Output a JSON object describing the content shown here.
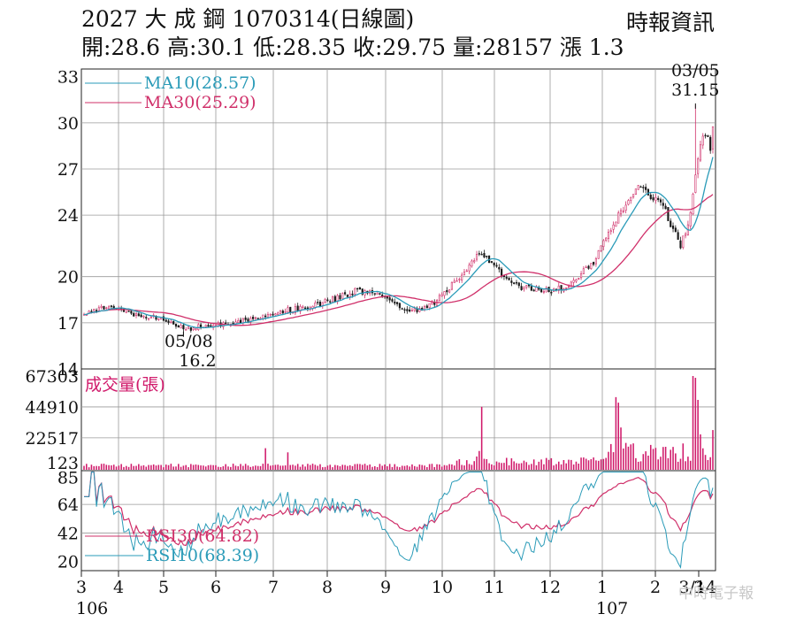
{
  "header": {
    "title": "2027 大 成 鋼 1070314(日線圖)",
    "ohlc": "開:28.6 高:30.1 低:28.35 收:29.75 量:28157 漲 1.3",
    "source": "時報資訊"
  },
  "chart_data": [
    {
      "type": "candlestick",
      "panel": "price",
      "yticks": [
        14,
        17,
        20,
        24,
        27,
        30,
        33
      ],
      "ylim": [
        14,
        33.5
      ],
      "legend": [
        {
          "label": "MA10(28.57)",
          "color": "#2a9bb8"
        },
        {
          "label": "MA30(25.29)",
          "color": "#d0306a"
        }
      ],
      "annotations": [
        {
          "date": "03/05",
          "value": "31.15",
          "x": 246,
          "y": 31.15
        },
        {
          "date": "05/08",
          "value": "16.2",
          "x": 40,
          "y": 16.2
        }
      ],
      "close_anchors": [
        [
          0,
          17.6
        ],
        [
          8,
          18
        ],
        [
          20,
          17.6
        ],
        [
          30,
          17.3
        ],
        [
          40,
          16.6
        ],
        [
          50,
          16.8
        ],
        [
          60,
          16.9
        ],
        [
          70,
          17.4
        ],
        [
          80,
          17.8
        ],
        [
          90,
          18
        ],
        [
          100,
          18.5
        ],
        [
          110,
          19.1
        ],
        [
          120,
          18.8
        ],
        [
          130,
          17.6
        ],
        [
          140,
          18.2
        ],
        [
          150,
          19.8
        ],
        [
          160,
          21.6
        ],
        [
          165,
          20.6
        ],
        [
          175,
          19.3
        ],
        [
          185,
          19.1
        ],
        [
          195,
          19.3
        ],
        [
          205,
          21
        ],
        [
          213,
          23.5
        ],
        [
          222,
          25.8
        ],
        [
          232,
          24.9
        ],
        [
          240,
          22
        ],
        [
          244,
          24
        ],
        [
          248,
          28.7
        ],
        [
          250,
          29.2
        ],
        [
          252,
          28.45
        ],
        [
          253,
          29.75
        ]
      ]
    },
    {
      "type": "bar",
      "panel": "volume",
      "title": "成交量(張)",
      "color": "#d01a6b",
      "yticks": [
        123,
        22517,
        44910,
        67303
      ],
      "ylim": [
        0,
        67303
      ],
      "spikes": [
        [
          73,
          15000
        ],
        [
          82,
          12000
        ],
        [
          158,
          9000
        ],
        [
          159,
          13000
        ],
        [
          160,
          45000
        ],
        [
          210,
          8000
        ],
        [
          214,
          52000
        ],
        [
          215,
          48000
        ],
        [
          216,
          30000
        ],
        [
          245,
          72000
        ],
        [
          246,
          66000
        ],
        [
          247,
          50000
        ],
        [
          248,
          25000
        ],
        [
          253,
          28157
        ]
      ]
    },
    {
      "type": "line",
      "panel": "rsi",
      "yticks": [
        20,
        42,
        64,
        85
      ],
      "ylim": [
        13,
        90
      ],
      "series": [
        {
          "name": "RSI30(64.82)",
          "color": "#d0306a"
        },
        {
          "name": "RSI10(68.39)",
          "color": "#2a9bb8"
        }
      ]
    }
  ],
  "x_axis": {
    "months": [
      "3",
      "4",
      "5",
      "6",
      "7",
      "8",
      "9",
      "10",
      "11",
      "12",
      "1",
      "2",
      "3"
    ],
    "years": [
      "106",
      "107"
    ],
    "end_label": "3/14"
  },
  "watermark": "中時電子報"
}
